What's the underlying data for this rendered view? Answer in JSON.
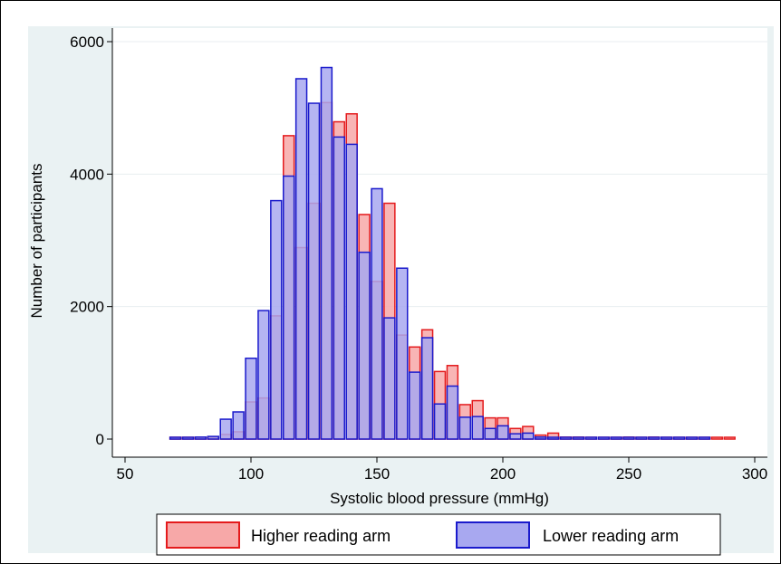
{
  "chart_data": {
    "type": "bar",
    "xlabel": "Systolic blood pressure (mmHg)",
    "ylabel": "Number of participants",
    "xlim": [
      50,
      300
    ],
    "ylim": [
      0,
      6000
    ],
    "xticks": [
      "50",
      "100",
      "150",
      "200",
      "250",
      "300"
    ],
    "yticks": [
      "0",
      "2000",
      "4000",
      "6000"
    ],
    "grid": true,
    "legend_position": "bottom",
    "bin_width": 5,
    "series": [
      {
        "name": "Higher reading arm",
        "color": "#e41a1c",
        "fill": "#f7a8a8",
        "x": [
          70,
          75,
          80,
          85,
          90,
          95,
          100,
          105,
          110,
          115,
          120,
          125,
          130,
          135,
          140,
          145,
          150,
          155,
          160,
          165,
          170,
          175,
          180,
          185,
          190,
          195,
          200,
          205,
          210,
          215,
          220,
          225,
          230,
          235,
          240,
          245,
          250,
          255,
          260,
          265,
          270,
          275,
          280,
          285,
          290
        ],
        "values": [
          5,
          10,
          20,
          30,
          70,
          110,
          560,
          620,
          1860,
          4580,
          2890,
          3560,
          5080,
          4790,
          4910,
          3390,
          2380,
          3560,
          1570,
          1390,
          1650,
          1020,
          1110,
          520,
          580,
          320,
          320,
          160,
          190,
          60,
          90,
          30,
          30,
          20,
          10,
          10,
          30,
          10,
          30,
          10,
          10,
          10,
          10,
          10,
          10
        ]
      },
      {
        "name": "Lower reading arm",
        "color": "#1a1acc",
        "fill": "#a8a8f0",
        "x": [
          70,
          75,
          80,
          85,
          90,
          95,
          100,
          105,
          110,
          115,
          120,
          125,
          130,
          135,
          140,
          145,
          150,
          155,
          160,
          165,
          170,
          175,
          180,
          185,
          190,
          195,
          200,
          205,
          210,
          215,
          220,
          225,
          230,
          235,
          240,
          245,
          250,
          255,
          260,
          265,
          270,
          275,
          280
        ],
        "values": [
          10,
          20,
          30,
          40,
          300,
          410,
          1220,
          1940,
          3600,
          3970,
          5440,
          5070,
          5610,
          4560,
          4450,
          2820,
          3780,
          1830,
          2580,
          1010,
          1530,
          530,
          800,
          330,
          340,
          160,
          200,
          80,
          90,
          30,
          20,
          10,
          10,
          10,
          10,
          10,
          10,
          10,
          10,
          10,
          10,
          10,
          10
        ]
      }
    ]
  }
}
